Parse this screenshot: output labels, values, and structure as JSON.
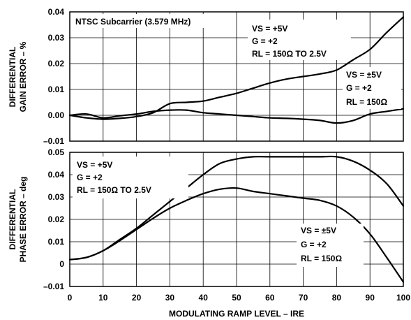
{
  "chart_data": [
    {
      "type": "line",
      "ylabel_lines": [
        "DIFFERENTIAL",
        "GAIN ERROR – %"
      ],
      "ylim": [
        -0.01,
        0.04
      ],
      "yticks": [
        -0.01,
        0.0,
        0.01,
        0.02,
        0.03,
        0.04
      ],
      "ytick_labels": [
        "–0.01",
        "0.00",
        "0.01",
        "0.02",
        "0.03",
        "0.04"
      ],
      "grid": true,
      "annotations": {
        "subcarrier": "NTSC Subcarrier (3.579 MHz)",
        "vs5_vs": "VS = +5V",
        "vs5_g": "G = +2",
        "vs5_rl": "RL = 150Ω TO 2.5V",
        "vspm5_vs": "VS = ±5V",
        "vspm5_g": "G = +2",
        "vspm5_rl": "RL = 150Ω"
      },
      "series": [
        {
          "x": [
            0,
            5,
            10,
            15,
            20,
            25,
            30,
            35,
            40,
            45,
            50,
            55,
            60,
            65,
            70,
            75,
            80,
            85,
            90,
            95,
            100
          ],
          "values": [
            0.0,
            -0.001,
            -0.0015,
            -0.0012,
            -0.0005,
            0.001,
            0.0045,
            0.005,
            0.0055,
            0.007,
            0.0085,
            0.0105,
            0.0125,
            0.014,
            0.015,
            0.016,
            0.0175,
            0.0215,
            0.0255,
            0.032,
            0.038
          ]
        },
        {
          "x": [
            0,
            5,
            10,
            15,
            20,
            25,
            30,
            35,
            40,
            45,
            50,
            55,
            60,
            65,
            70,
            75,
            80,
            85,
            90,
            95,
            100
          ],
          "values": [
            0.0,
            0.0005,
            -0.001,
            -0.0002,
            0.0005,
            0.0015,
            0.002,
            0.002,
            0.001,
            0.0005,
            0.0,
            -0.0005,
            -0.001,
            -0.0012,
            -0.0015,
            -0.002,
            -0.003,
            -0.002,
            0.0005,
            0.0015,
            0.0025
          ]
        }
      ]
    },
    {
      "type": "line",
      "xlabel": "MODULATING RAMP LEVEL – IRE",
      "ylabel_lines": [
        "DIFFERENTIAL",
        "PHASE ERROR – deg"
      ],
      "xlim": [
        0,
        100
      ],
      "xticks": [
        0,
        10,
        20,
        30,
        40,
        50,
        60,
        70,
        80,
        90,
        100
      ],
      "xtick_labels": [
        "0",
        "10",
        "20",
        "30",
        "40",
        "50",
        "60",
        "70",
        "80",
        "90",
        "100"
      ],
      "ylim": [
        -0.01,
        0.05
      ],
      "yticks": [
        -0.01,
        0.0,
        0.01,
        0.02,
        0.03,
        0.04,
        0.05
      ],
      "ytick_labels": [
        "–0.01",
        "0",
        "0.01",
        "0.02",
        "0.03",
        "0.04",
        "0.05"
      ],
      "grid": true,
      "annotations": {
        "vs5_vs": "VS = +5V",
        "vs5_g": "G = +2",
        "vs5_rl": "RL = 150Ω TO 2.5V",
        "vspm5_vs": "VS = ±5V",
        "vspm5_g": "G = +2",
        "vspm5_rl": "RL = 150Ω"
      },
      "series": [
        {
          "x": [
            0,
            5,
            10,
            15,
            20,
            25,
            30,
            35,
            40,
            45,
            50,
            55,
            60,
            65,
            70,
            75,
            80,
            85,
            90,
            95,
            100
          ],
          "values": [
            0.002,
            0.003,
            0.006,
            0.011,
            0.016,
            0.022,
            0.028,
            0.034,
            0.04,
            0.045,
            0.047,
            0.048,
            0.048,
            0.048,
            0.048,
            0.048,
            0.048,
            0.046,
            0.042,
            0.036,
            0.026
          ]
        },
        {
          "x": [
            0,
            5,
            10,
            15,
            20,
            25,
            30,
            35,
            40,
            45,
            50,
            55,
            60,
            65,
            70,
            75,
            80,
            85,
            90,
            95,
            100
          ],
          "values": [
            0.002,
            0.003,
            0.006,
            0.0105,
            0.0155,
            0.0205,
            0.025,
            0.0285,
            0.0315,
            0.0335,
            0.034,
            0.0325,
            0.0315,
            0.0305,
            0.0295,
            0.0285,
            0.026,
            0.021,
            0.0135,
            0.003,
            -0.008
          ]
        }
      ]
    }
  ]
}
